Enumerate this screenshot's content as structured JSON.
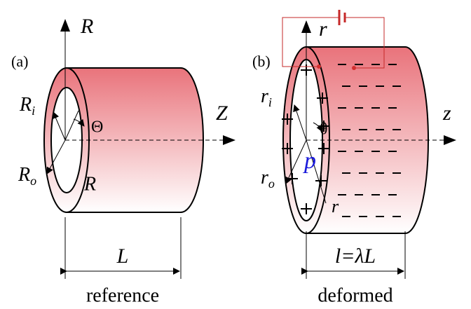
{
  "panels": [
    {
      "label": "(a)",
      "axis_vertical": "R",
      "axis_horizontal": "Z",
      "inner_radius": {
        "base": "R",
        "sub": "i"
      },
      "outer_radius": {
        "base": "R",
        "sub": "o"
      },
      "angle": "Θ",
      "radius": "R",
      "length": "L",
      "caption": "reference"
    },
    {
      "label": "(b)",
      "axis_vertical": "r",
      "axis_horizontal": "z",
      "inner_radius": {
        "base": "r",
        "sub": "i"
      },
      "outer_radius": {
        "base": "r",
        "sub": "o"
      },
      "angle": "θ",
      "pressure": "p",
      "radius": "r",
      "length": "l=λL",
      "caption": "deformed"
    }
  ]
}
